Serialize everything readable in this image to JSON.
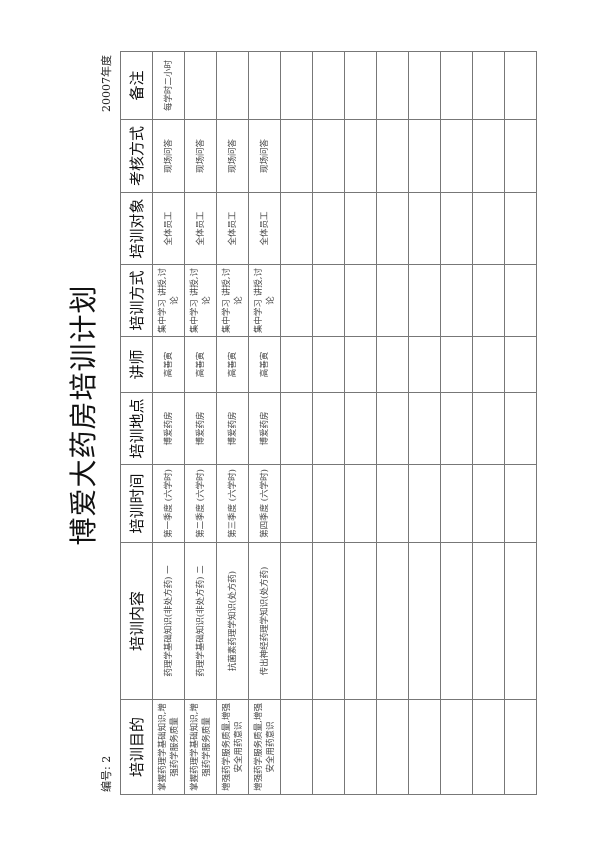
{
  "title": "博爱大药房培训计划",
  "year": "20007年度",
  "serial": "编号: 2",
  "headers": [
    "培训目的",
    "培训内容",
    "培训时间",
    "培训地点",
    "讲师",
    "培训方式",
    "培训对象",
    "考核方式",
    "备注"
  ],
  "rows": [
    [
      "掌握药理学基础知识,增强药学服务质量",
      "药理学基础知识(非处方药) 一",
      "第一季度 (六学时)",
      "博爱药房",
      "高善寅",
      "集中学习 讲授,讨论",
      "全体员工",
      "现场问答",
      "每学时二小时"
    ],
    [
      "掌握药理学基础知识,增强药学服务质量",
      "药理学基础知识(非处方药) 二",
      "第二季度 (六学时)",
      "博爱药房",
      "高善寅",
      "集中学习 讲授,讨论",
      "全体员工",
      "现场问答",
      ""
    ],
    [
      "增强药学服务质量,增强安全用药意识",
      "抗菌素药理学知识(处方药)",
      "第三季度 (六学时)",
      "博爱药房",
      "高善寅",
      "集中学习 讲授,讨论",
      "全体员工",
      "现场问答",
      ""
    ],
    [
      "增强药学服务质量,增强安全用药意识",
      "传出神经药理学知识(处方药)",
      "第四季度 (六学时)",
      "博爱药房",
      "高善寅",
      "集中学习 讲授,讨论",
      "全体员工",
      "现场问答",
      ""
    ],
    [
      "",
      "",
      "",
      "",
      "",
      "",
      "",
      "",
      ""
    ],
    [
      "",
      "",
      "",
      "",
      "",
      "",
      "",
      "",
      ""
    ],
    [
      "",
      "",
      "",
      "",
      "",
      "",
      "",
      "",
      ""
    ],
    [
      "",
      "",
      "",
      "",
      "",
      "",
      "",
      "",
      ""
    ],
    [
      "",
      "",
      "",
      "",
      "",
      "",
      "",
      "",
      ""
    ],
    [
      "",
      "",
      "",
      "",
      "",
      "",
      "",
      "",
      ""
    ],
    [
      "",
      "",
      "",
      "",
      "",
      "",
      "",
      "",
      ""
    ],
    [
      "",
      "",
      "",
      "",
      "",
      "",
      "",
      "",
      ""
    ]
  ]
}
